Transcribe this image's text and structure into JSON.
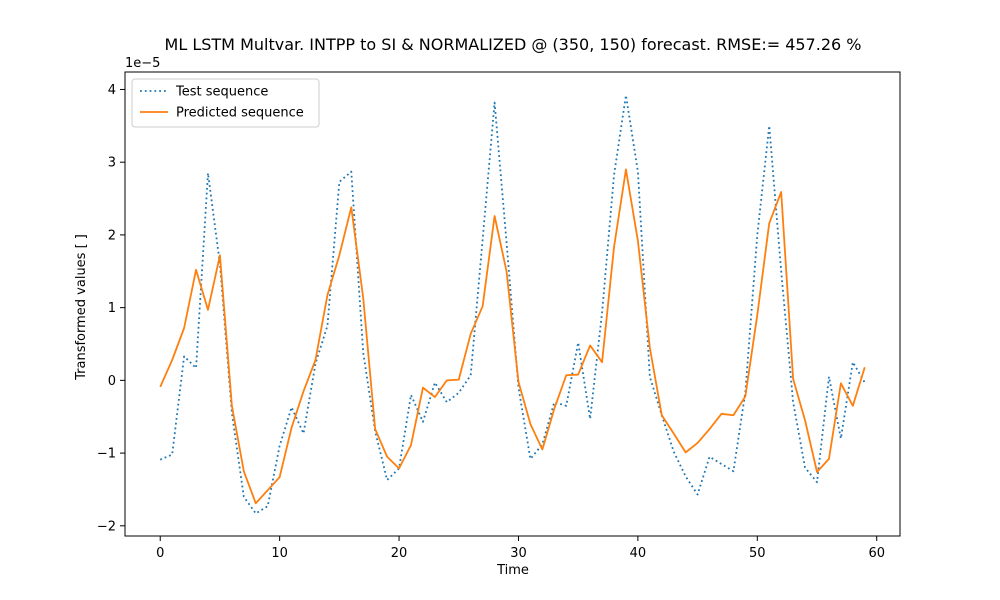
{
  "chart_data": {
    "type": "line",
    "title": "ML LSTM Multvar. INTPP to SI &  NORMALIZED @ (350, 150) forecast. RMSE:=  457.26 %",
    "xlabel": "Time",
    "ylabel": "Transformed values [ ]",
    "offset_text": "1e−5",
    "xlim": [
      -2.95,
      61.95
    ],
    "ylim": [
      -2.14,
      4.24
    ],
    "xticks": [
      0,
      10,
      20,
      30,
      40,
      50,
      60
    ],
    "yticks": [
      -2,
      -1,
      0,
      1,
      2,
      3,
      4
    ],
    "ytick_labels": [
      "−2",
      "−1",
      "0",
      "1",
      "2",
      "3",
      "4"
    ],
    "legend_position": "upper-left",
    "grid": false,
    "x": [
      0,
      1,
      2,
      3,
      4,
      5,
      6,
      7,
      8,
      9,
      10,
      11,
      12,
      13,
      14,
      15,
      16,
      17,
      18,
      19,
      20,
      21,
      22,
      23,
      24,
      25,
      26,
      27,
      28,
      29,
      30,
      31,
      32,
      33,
      34,
      35,
      36,
      37,
      38,
      39,
      40,
      41,
      42,
      43,
      44,
      45,
      46,
      47,
      48,
      49,
      50,
      51,
      52,
      53,
      54,
      55,
      56,
      57,
      58,
      59
    ],
    "series": [
      {
        "name": "Test sequence",
        "color": "#1f77b4",
        "style": "dotted",
        "values": [
          -1.09,
          -1.02,
          0.33,
          0.17,
          2.85,
          1.6,
          -0.45,
          -1.6,
          -1.83,
          -1.73,
          -0.9,
          -0.37,
          -0.73,
          0.23,
          0.75,
          2.73,
          2.87,
          0.38,
          -0.7,
          -1.37,
          -1.21,
          -0.2,
          -0.57,
          -0.03,
          -0.3,
          -0.17,
          0.07,
          1.94,
          3.82,
          1.9,
          -0.1,
          -1.08,
          -0.88,
          -0.3,
          -0.35,
          0.52,
          -0.53,
          0.93,
          2.82,
          3.92,
          2.87,
          0.05,
          -0.48,
          -0.98,
          -1.32,
          -1.57,
          -1.05,
          -1.15,
          -1.25,
          -0.16,
          2.0,
          3.5,
          1.5,
          -0.3,
          -1.2,
          -1.4,
          0.05,
          -0.8,
          0.25,
          -0.03
        ]
      },
      {
        "name": "Predicted sequence",
        "color": "#ff7f0e",
        "style": "solid",
        "values": [
          -0.09,
          0.28,
          0.72,
          1.52,
          0.97,
          1.72,
          -0.35,
          -1.25,
          -1.69,
          -1.51,
          -1.33,
          -0.65,
          -0.15,
          0.28,
          1.17,
          1.72,
          2.38,
          1.13,
          -0.67,
          -1.05,
          -1.21,
          -0.89,
          -0.1,
          -0.23,
          0,
          0.01,
          0.64,
          1.02,
          2.26,
          1.5,
          -0.02,
          -0.6,
          -0.95,
          -0.39,
          0.07,
          0.08,
          0.48,
          0.25,
          1.83,
          2.9,
          1.92,
          0.45,
          -0.48,
          -0.73,
          -0.99,
          -0.86,
          -0.67,
          -0.46,
          -0.48,
          -0.22,
          0.9,
          2.16,
          2.59,
          0.02,
          -0.55,
          -1.26,
          -1.08,
          -0.04,
          -0.35,
          0.18
        ]
      }
    ]
  }
}
